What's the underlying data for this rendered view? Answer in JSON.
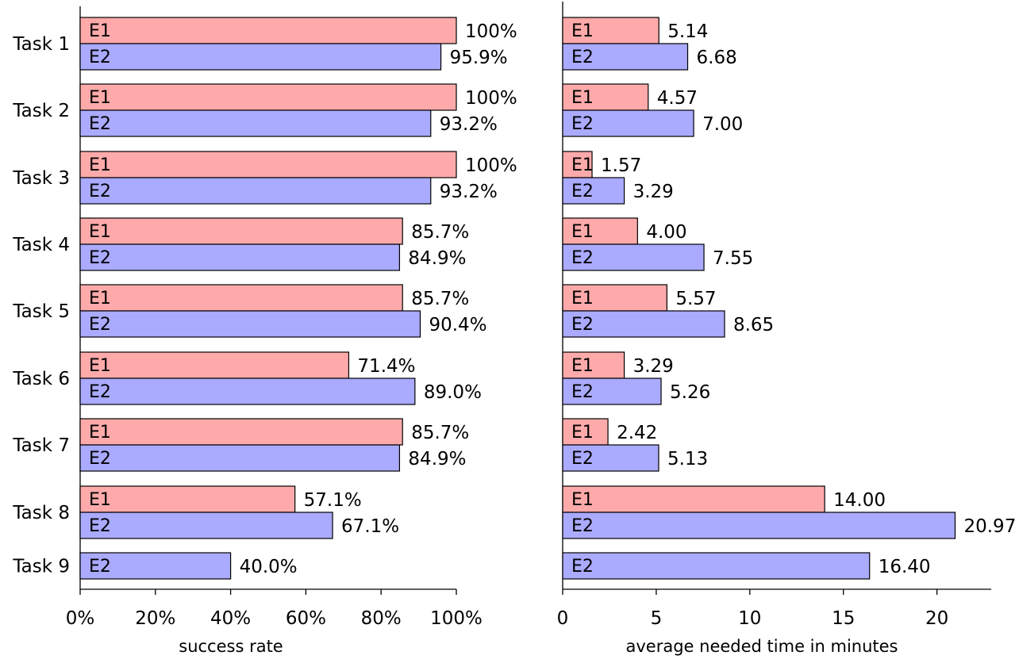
{
  "chart_data": [
    {
      "type": "bar",
      "orientation": "horizontal",
      "xlabel": "success rate",
      "xlim": [
        0,
        100
      ],
      "xticks": [
        0,
        20,
        40,
        60,
        80,
        100
      ],
      "tick_suffix": "%",
      "categories": [
        "Task 1",
        "Task 2",
        "Task 3",
        "Task 4",
        "Task 5",
        "Task 6",
        "Task 7",
        "Task 8",
        "Task 9"
      ],
      "series": [
        {
          "name": "E1",
          "color": "#ffaaaa",
          "values": [
            100,
            100,
            100,
            85.7,
            85.7,
            71.4,
            85.7,
            57.1,
            null
          ],
          "labels": [
            "100%",
            "100%",
            "100%",
            "85.7%",
            "85.7%",
            "71.4%",
            "85.7%",
            "57.1%",
            null
          ]
        },
        {
          "name": "E2",
          "color": "#aaaaff",
          "values": [
            95.9,
            93.2,
            93.2,
            84.9,
            90.4,
            89.0,
            84.9,
            67.1,
            40.0
          ],
          "labels": [
            "95.9%",
            "93.2%",
            "93.2%",
            "84.9%",
            "90.4%",
            "89.0%",
            "84.9%",
            "67.1%",
            "40.0%"
          ]
        }
      ]
    },
    {
      "type": "bar",
      "orientation": "horizontal",
      "xlabel": "average needed time in minutes",
      "xlim": [
        0,
        22.9
      ],
      "xticks": [
        0,
        5,
        10,
        15,
        20
      ],
      "tick_suffix": "",
      "categories": [
        "Task 1",
        "Task 2",
        "Task 3",
        "Task 4",
        "Task 5",
        "Task 6",
        "Task 7",
        "Task 8",
        "Task 9"
      ],
      "series": [
        {
          "name": "E1",
          "color": "#ffaaaa",
          "values": [
            5.14,
            4.57,
            1.57,
            4.0,
            5.57,
            3.29,
            2.42,
            14.0,
            null
          ],
          "labels": [
            "5.14",
            "4.57",
            "1.57",
            "4.00",
            "5.57",
            "3.29",
            "2.42",
            "14.00",
            null
          ]
        },
        {
          "name": "E2",
          "color": "#aaaaff",
          "values": [
            6.68,
            7.0,
            3.29,
            7.55,
            8.65,
            5.26,
            5.13,
            20.97,
            16.4
          ],
          "labels": [
            "6.68",
            "7.00",
            "3.29",
            "7.55",
            "8.65",
            "5.26",
            "5.13",
            "20.97",
            "16.40"
          ]
        }
      ]
    }
  ]
}
